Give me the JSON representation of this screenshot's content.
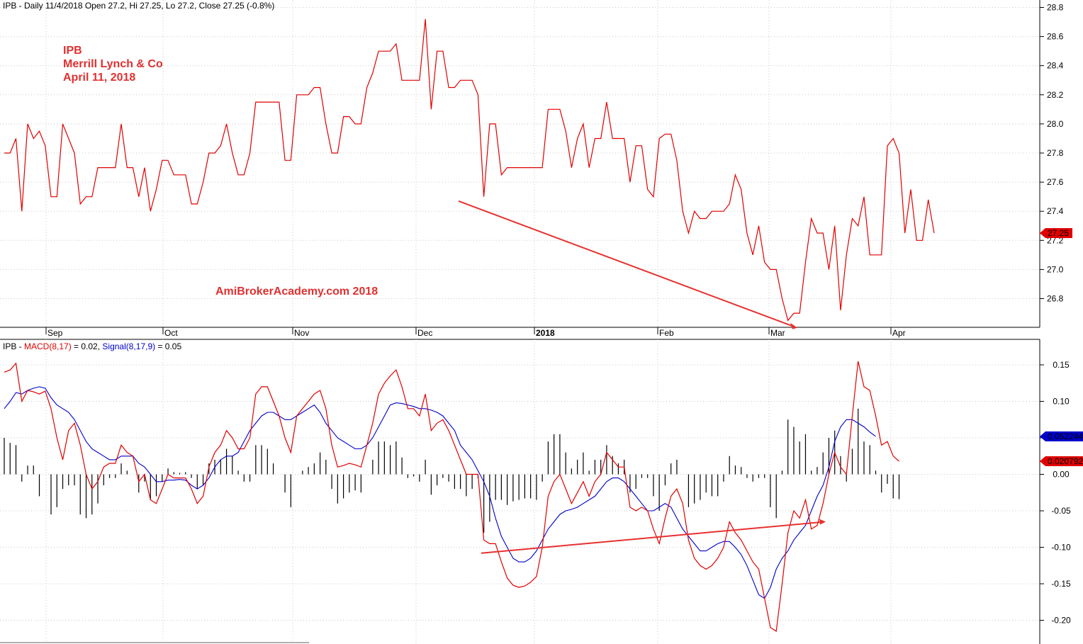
{
  "header": {
    "price_title": "IPB - Daily 11/4/2018 Open 27.2, Hi 27.25, Lo 27.2, Close 27.25 (-0.8%)",
    "macd_prefix": "IPB - ",
    "macd_label": "MACD(8,17)",
    "macd_value": " = 0.02, ",
    "signal_label": "Signal(8,17,9)",
    "signal_value": " = 0.05"
  },
  "annotations": {
    "ticker": "IPB",
    "broker": "Merrill Lynch & Co",
    "date": "April 11, 2018",
    "watermark": "AmiBrokerAcademy.com  2018"
  },
  "colors": {
    "price_line": "#e00000",
    "macd_line": "#e00000",
    "signal_line": "#0000cc",
    "histogram": "#000000",
    "annotation_text": "#e03030",
    "trendline": "#e83030",
    "grid": "#c8c8c8",
    "axis": "#000000"
  },
  "chart_data": [
    {
      "type": "line",
      "panel": "price",
      "title": "IPB - Daily 11/4/2018 Open 27.2, Hi 27.25, Lo 27.2, Close 27.25 (-0.8%)",
      "x_tick_labels": [
        "Sep",
        "Oct",
        "Nov",
        "Dec",
        "2018",
        "Feb",
        "Mar",
        "Apr"
      ],
      "y_ticks": [
        26.8,
        27.0,
        27.2,
        27.4,
        27.6,
        27.8,
        28.0,
        28.2,
        28.4,
        28.6,
        28.8
      ],
      "ylim": [
        26.6,
        28.85
      ],
      "last_value_label": "27.25",
      "grid": true,
      "series": [
        {
          "name": "IPB",
          "values": [
            27.8,
            27.8,
            27.9,
            27.4,
            28.0,
            27.9,
            27.95,
            27.85,
            27.5,
            27.5,
            28.0,
            27.9,
            27.8,
            27.45,
            27.5,
            27.5,
            27.7,
            27.7,
            27.7,
            27.7,
            28.0,
            27.7,
            27.7,
            27.5,
            27.7,
            27.4,
            27.55,
            27.75,
            27.75,
            27.65,
            27.65,
            27.65,
            27.45,
            27.45,
            27.6,
            27.8,
            27.8,
            27.85,
            28.0,
            27.8,
            27.65,
            27.65,
            27.8,
            28.15,
            28.15,
            28.15,
            28.15,
            28.15,
            27.75,
            27.75,
            28.2,
            28.2,
            28.2,
            28.25,
            28.25,
            28.0,
            27.8,
            27.8,
            28.05,
            28.05,
            28.0,
            28.0,
            28.25,
            28.35,
            28.5,
            28.5,
            28.5,
            28.55,
            28.3,
            28.3,
            28.3,
            28.3,
            28.72,
            28.1,
            28.5,
            28.5,
            28.25,
            28.25,
            28.3,
            28.3,
            28.3,
            28.2,
            27.5,
            28.0,
            28.0,
            27.65,
            27.7,
            27.7,
            27.7,
            27.7,
            27.7,
            27.7,
            27.7,
            28.1,
            28.1,
            28.1,
            27.95,
            27.7,
            27.9,
            28.0,
            27.7,
            27.9,
            27.9,
            28.15,
            27.9,
            27.9,
            27.9,
            27.6,
            27.85,
            27.85,
            27.55,
            27.5,
            27.9,
            27.93,
            27.93,
            27.75,
            27.4,
            27.25,
            27.4,
            27.35,
            27.35,
            27.4,
            27.4,
            27.4,
            27.45,
            27.65,
            27.55,
            27.25,
            27.1,
            27.3,
            27.05,
            27.0,
            27.0,
            26.8,
            26.65,
            26.7,
            26.7,
            27.05,
            27.35,
            27.25,
            27.25,
            27.0,
            27.3,
            26.72,
            27.1,
            27.35,
            27.3,
            27.5,
            27.1,
            27.1,
            27.1,
            27.85,
            27.9,
            27.8,
            27.25,
            27.55,
            27.2,
            27.2,
            27.48,
            27.25
          ]
        }
      ],
      "trendline": {
        "from": [
          "Dec",
          27.47
        ],
        "to": [
          "Mar",
          26.6
        ]
      }
    },
    {
      "type": "line",
      "panel": "macd",
      "title": "IPB - MACD(8,17) = 0.02, Signal(8,17,9) = 0.05",
      "y_ticks": [
        -0.2,
        -0.15,
        -0.1,
        -0.05,
        0.0,
        0.05,
        0.1,
        0.15
      ],
      "y_tick_labels": [
        "-0.20",
        "-0.15",
        "-0.10",
        "-0.05",
        "0.00",
        "0.05",
        "0.10",
        "0.15"
      ],
      "ylim": [
        -0.225,
        0.18
      ],
      "last_value_labels": {
        "signal": "0.052244",
        "macd": "0.020792"
      },
      "grid": true,
      "series": [
        {
          "name": "MACD(8,17)",
          "values": [
            0.14,
            0.143,
            0.152,
            0.1,
            0.115,
            0.113,
            0.11,
            0.114,
            0.09,
            0.05,
            0.02,
            0.06,
            0.07,
            0.04,
            0.0,
            -0.02,
            -0.01,
            0.01,
            0.015,
            0.015,
            0.04,
            0.03,
            0.025,
            -0.01,
            0.0,
            -0.035,
            -0.04,
            -0.02,
            0.0,
            -0.005,
            -0.005,
            -0.005,
            -0.02,
            -0.04,
            -0.03,
            0.01,
            0.03,
            0.04,
            0.06,
            0.05,
            0.035,
            0.035,
            0.05,
            0.11,
            0.12,
            0.12,
            0.1,
            0.08,
            0.05,
            0.03,
            0.08,
            0.09,
            0.1,
            0.11,
            0.115,
            0.09,
            0.04,
            0.01,
            0.012,
            0.015,
            0.013,
            0.01,
            0.04,
            0.07,
            0.11,
            0.125,
            0.135,
            0.143,
            0.12,
            0.09,
            0.09,
            0.08,
            0.11,
            0.06,
            0.07,
            0.075,
            0.06,
            0.04,
            0.02,
            0.0,
            0.0,
            0.0,
            -0.09,
            -0.095,
            -0.095,
            -0.12,
            -0.142,
            -0.152,
            -0.155,
            -0.153,
            -0.148,
            -0.14,
            -0.1,
            -0.03,
            -0.01,
            0.0,
            -0.02,
            -0.04,
            -0.025,
            -0.01,
            -0.03,
            -0.01,
            0.0,
            0.03,
            0.02,
            0.01,
            0.01,
            -0.045,
            -0.05,
            -0.045,
            -0.05,
            -0.075,
            -0.095,
            -0.06,
            -0.03,
            -0.02,
            -0.04,
            -0.09,
            -0.115,
            -0.125,
            -0.13,
            -0.125,
            -0.115,
            -0.1,
            -0.065,
            -0.08,
            -0.09,
            -0.105,
            -0.12,
            -0.13,
            -0.17,
            -0.21,
            -0.215,
            -0.15,
            -0.08,
            -0.05,
            -0.06,
            -0.035,
            -0.075,
            -0.07,
            -0.04,
            0.0,
            0.03,
            0.01,
            0.0,
            0.08,
            0.155,
            0.12,
            0.115,
            0.08,
            0.04,
            0.045,
            0.025,
            0.018
          ]
        },
        {
          "name": "Signal(8,17,9)",
          "values": [
            0.09,
            0.1,
            0.112,
            0.11,
            0.115,
            0.118,
            0.12,
            0.118,
            0.105,
            0.095,
            0.09,
            0.085,
            0.075,
            0.06,
            0.045,
            0.035,
            0.03,
            0.025,
            0.02,
            0.02,
            0.025,
            0.025,
            0.025,
            0.015,
            0.01,
            0.0,
            -0.01,
            -0.01,
            -0.008,
            -0.008,
            -0.007,
            -0.008,
            -0.015,
            -0.02,
            -0.015,
            -0.005,
            0.01,
            0.02,
            0.025,
            0.025,
            0.03,
            0.045,
            0.06,
            0.07,
            0.08,
            0.085,
            0.085,
            0.08,
            0.075,
            0.075,
            0.08,
            0.085,
            0.09,
            0.095,
            0.085,
            0.07,
            0.06,
            0.05,
            0.045,
            0.04,
            0.035,
            0.035,
            0.04,
            0.05,
            0.065,
            0.08,
            0.095,
            0.098,
            0.097,
            0.095,
            0.093,
            0.09,
            0.09,
            0.088,
            0.085,
            0.08,
            0.07,
            0.06,
            0.04,
            0.03,
            0.02,
            0.005,
            -0.01,
            -0.03,
            -0.06,
            -0.085,
            -0.1,
            -0.115,
            -0.12,
            -0.12,
            -0.115,
            -0.105,
            -0.09,
            -0.075,
            -0.065,
            -0.055,
            -0.05,
            -0.048,
            -0.045,
            -0.04,
            -0.035,
            -0.03,
            -0.02,
            -0.01,
            -0.005,
            -0.005,
            -0.01,
            -0.02,
            -0.03,
            -0.04,
            -0.05,
            -0.05,
            -0.045,
            -0.04,
            -0.045,
            -0.06,
            -0.075,
            -0.085,
            -0.095,
            -0.105,
            -0.105,
            -0.1,
            -0.095,
            -0.092,
            -0.092,
            -0.1,
            -0.11,
            -0.125,
            -0.145,
            -0.165,
            -0.17,
            -0.155,
            -0.13,
            -0.115,
            -0.105,
            -0.09,
            -0.08,
            -0.07,
            -0.05,
            -0.03,
            -0.015,
            0.01,
            0.045,
            0.065,
            0.075,
            0.075,
            0.07,
            0.065,
            0.058,
            0.052
          ]
        },
        {
          "name": "Histogram",
          "values": [
            0.05,
            0.043,
            0.04,
            -0.01,
            0.012,
            0.012,
            -0.03,
            0.0,
            -0.055,
            -0.045,
            -0.02,
            -0.015,
            -0.015,
            -0.055,
            -0.06,
            -0.055,
            -0.04,
            -0.015,
            -0.005,
            -0.005,
            0.015,
            0.005,
            0.0,
            -0.025,
            -0.01,
            -0.035,
            -0.03,
            -0.01,
            0.008,
            0.003,
            0.002,
            0.003,
            -0.005,
            -0.02,
            -0.015,
            0.015,
            0.02,
            0.02,
            0.035,
            0.025,
            0.005,
            -0.01,
            -0.01,
            0.04,
            0.04,
            0.035,
            0.015,
            0.0,
            -0.025,
            -0.045,
            0.0,
            0.005,
            0.01,
            0.015,
            0.03,
            0.02,
            -0.02,
            -0.04,
            -0.033,
            -0.025,
            -0.022,
            -0.025,
            0.0,
            0.02,
            0.045,
            0.045,
            0.04,
            0.045,
            0.023,
            -0.005,
            -0.003,
            -0.01,
            0.02,
            -0.028,
            -0.015,
            -0.005,
            -0.01,
            -0.02,
            -0.02,
            -0.03,
            -0.02,
            -0.005,
            -0.08,
            -0.065,
            -0.035,
            -0.035,
            -0.042,
            -0.037,
            -0.035,
            -0.033,
            -0.033,
            -0.035,
            -0.01,
            0.045,
            0.055,
            0.055,
            0.03,
            0.008,
            0.02,
            0.03,
            0.005,
            0.02,
            0.02,
            0.04,
            0.025,
            0.015,
            0.02,
            -0.025,
            -0.02,
            -0.005,
            -0.005,
            -0.03,
            -0.05,
            -0.015,
            0.015,
            0.02,
            0.0,
            -0.045,
            -0.04,
            -0.035,
            -0.025,
            -0.03,
            -0.03,
            -0.01,
            0.025,
            0.012,
            0.01,
            -0.005,
            -0.01,
            -0.005,
            -0.005,
            -0.045,
            -0.06,
            0.005,
            0.075,
            0.065,
            0.045,
            0.055,
            0.005,
            0.01,
            0.03,
            0.05,
            0.06,
            0.025,
            -0.01,
            0.035,
            0.09,
            0.045,
            0.04,
            0.005,
            -0.025,
            -0.013,
            -0.033,
            -0.034
          ]
        }
      ],
      "trendline": {
        "from": [
          "Dec",
          -0.108
        ],
        "to": [
          "Mar",
          -0.065
        ]
      }
    }
  ]
}
